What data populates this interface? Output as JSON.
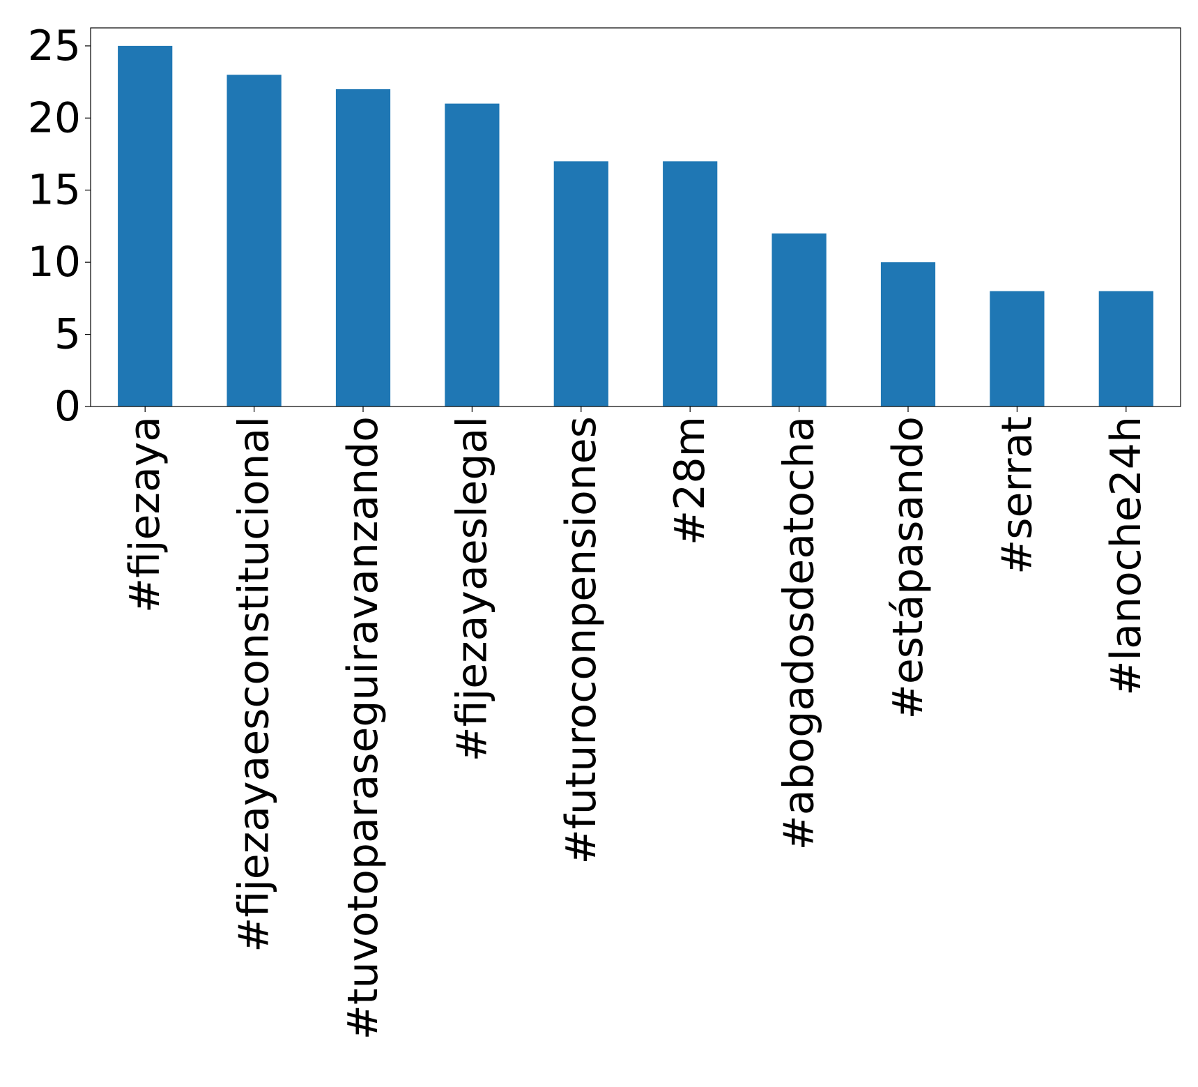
{
  "chart_data": {
    "type": "bar",
    "title": "",
    "xlabel": "",
    "ylabel": "",
    "categories": [
      "#fijezaya",
      "#fijezayaesconstitucional",
      "#tuvotoparaseguiravanzando",
      "#fijezayaeslegal",
      "#futuroconpensiones",
      "#28m",
      "#abogadosdeatocha",
      "#estápasando",
      "#serrat",
      "#lanoche24h"
    ],
    "values": [
      25,
      23,
      22,
      21,
      17,
      17,
      12,
      10,
      8,
      8
    ],
    "ylim": [
      0,
      26.25
    ],
    "yticks": [
      "0",
      "5",
      "10",
      "15",
      "20",
      "25"
    ],
    "grid": false,
    "legend": "none",
    "colors": {
      "bar": "#1f77b4",
      "axis": "#000000",
      "background": "#ffffff"
    }
  }
}
